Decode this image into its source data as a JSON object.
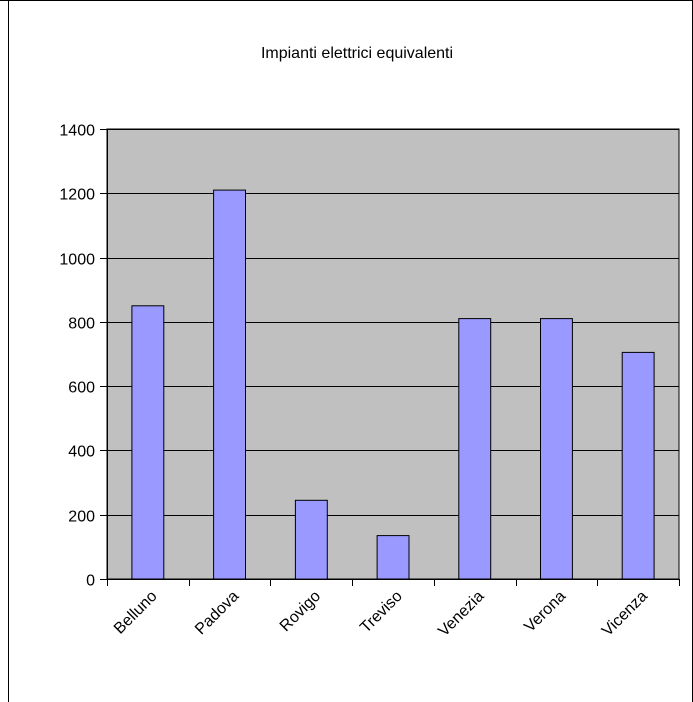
{
  "chart_data": {
    "type": "bar",
    "title": "Impianti elettrici equivalenti",
    "xlabel": "",
    "ylabel": "",
    "categories": [
      "Belluno",
      "Padova",
      "Rovigo",
      "Treviso",
      "Venezia",
      "Verona",
      "Vicenza"
    ],
    "series": [
      {
        "values": [
          850,
          1210,
          245,
          135,
          810,
          810,
          705
        ]
      }
    ],
    "ylim": [
      0,
      1400
    ],
    "yticks": [
      "0",
      "200",
      "400",
      "600",
      "800",
      "1000",
      "1200",
      "1400"
    ],
    "grid": true,
    "legend": "none",
    "colors": {
      "plot_background": "#c0c0c0",
      "bar_fill": "#9999ff",
      "bar_stroke": "#000000",
      "gridline": "#000000",
      "frame": "#000000"
    }
  }
}
